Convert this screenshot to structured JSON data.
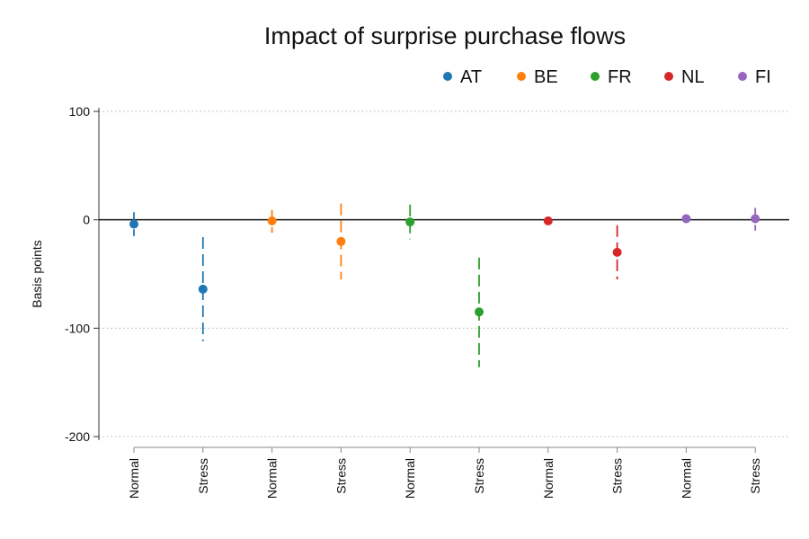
{
  "chart_data": {
    "type": "scatter",
    "title": "Impact of surprise purchase flows",
    "xlabel": "",
    "ylabel": "Basis points",
    "ylim": [
      -200,
      100
    ],
    "yticks": [
      100,
      0,
      -100,
      -200
    ],
    "grid": true,
    "legend_position": "top-right",
    "categories": [
      "Normal",
      "Stress",
      "Normal",
      "Stress",
      "Normal",
      "Stress",
      "Normal",
      "Stress",
      "Normal",
      "Stress"
    ],
    "series": [
      {
        "name": "AT",
        "color": "#1f77b4",
        "points": [
          {
            "category_index": 0,
            "regime": "Normal",
            "value": -4,
            "ci_low": -15,
            "ci_high": 7
          },
          {
            "category_index": 1,
            "regime": "Stress",
            "value": -64,
            "ci_low": -112,
            "ci_high": -16
          }
        ]
      },
      {
        "name": "BE",
        "color": "#ff7f0e",
        "points": [
          {
            "category_index": 2,
            "regime": "Normal",
            "value": -1,
            "ci_low": -12,
            "ci_high": 9
          },
          {
            "category_index": 3,
            "regime": "Stress",
            "value": -20,
            "ci_low": -55,
            "ci_high": 15
          }
        ]
      },
      {
        "name": "FR",
        "color": "#2ca02c",
        "points": [
          {
            "category_index": 4,
            "regime": "Normal",
            "value": -2,
            "ci_low": -18,
            "ci_high": 14
          },
          {
            "category_index": 5,
            "regime": "Stress",
            "value": -85,
            "ci_low": -136,
            "ci_high": -35
          }
        ]
      },
      {
        "name": "NL",
        "color": "#d62728",
        "points": [
          {
            "category_index": 6,
            "regime": "Normal",
            "value": -1,
            "ci_low": -4,
            "ci_high": 2
          },
          {
            "category_index": 7,
            "regime": "Stress",
            "value": -30,
            "ci_low": -55,
            "ci_high": -5
          }
        ]
      },
      {
        "name": "FI",
        "color": "#9467bd",
        "points": [
          {
            "category_index": 8,
            "regime": "Normal",
            "value": 1,
            "ci_low": -2,
            "ci_high": 3
          },
          {
            "category_index": 9,
            "regime": "Stress",
            "value": 1,
            "ci_low": -10,
            "ci_high": 11
          }
        ]
      }
    ]
  }
}
